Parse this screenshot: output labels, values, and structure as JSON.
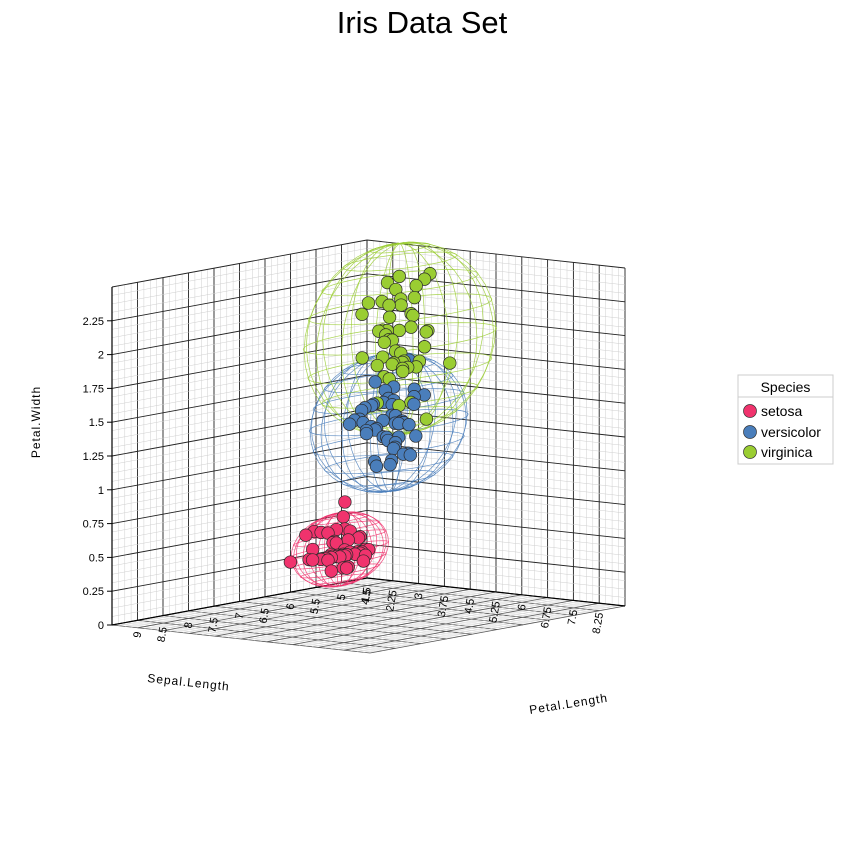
{
  "chart_data": {
    "type": "scatter",
    "title": "Iris Data Set",
    "xlabel": "Sepal.Length",
    "zlabel": "Petal.Length",
    "ylabel": "Petal.Width",
    "sepal_ticks": [
      "4.5",
      "5",
      "5.5",
      "6",
      "6.5",
      "7",
      "7.5",
      "8",
      "8.5",
      "9"
    ],
    "petal_length_ticks": [
      "1.5",
      "2.25",
      "3",
      "3.75",
      "4.5",
      "5.25",
      "6",
      "6.75",
      "7.5",
      "8.25"
    ],
    "petal_width_ticks": [
      "0",
      "0.25",
      "0.5",
      "0.75",
      "1",
      "1.25",
      "1.5",
      "1.75",
      "2",
      "2.25"
    ],
    "ylim": [
      0,
      2.5
    ],
    "grid": true,
    "legend": {
      "title": "Species",
      "position": "right"
    },
    "series": [
      {
        "name": "setosa",
        "color": "#f0336d",
        "sepal_length": [
          5.1,
          4.9,
          4.7,
          4.6,
          5.0,
          5.4,
          4.6,
          5.0,
          4.4,
          4.9,
          5.4,
          4.8,
          4.8,
          4.3,
          5.8,
          5.7,
          5.4,
          5.1,
          5.7,
          5.1,
          5.4,
          5.1,
          4.6,
          5.1,
          4.8,
          5.0,
          5.0,
          5.2,
          5.2,
          4.7,
          4.8,
          5.4,
          5.2,
          5.5,
          4.9,
          5.0,
          5.5,
          4.9,
          4.4,
          5.1,
          5.0,
          4.5,
          4.4,
          5.0,
          5.1,
          4.8,
          5.1,
          4.6,
          5.3,
          5.0
        ],
        "petal_length": [
          1.4,
          1.4,
          1.3,
          1.5,
          1.4,
          1.7,
          1.4,
          1.5,
          1.4,
          1.5,
          1.5,
          1.6,
          1.4,
          1.1,
          1.2,
          1.5,
          1.3,
          1.4,
          1.7,
          1.5,
          1.7,
          1.5,
          1.0,
          1.7,
          1.9,
          1.6,
          1.6,
          1.5,
          1.4,
          1.6,
          1.6,
          1.5,
          1.5,
          1.4,
          1.5,
          1.2,
          1.3,
          1.4,
          1.3,
          1.5,
          1.3,
          1.3,
          1.3,
          1.6,
          1.9,
          1.4,
          1.6,
          1.4,
          1.5,
          1.4
        ],
        "petal_width": [
          0.2,
          0.2,
          0.2,
          0.2,
          0.2,
          0.4,
          0.3,
          0.2,
          0.2,
          0.1,
          0.2,
          0.2,
          0.1,
          0.1,
          0.2,
          0.4,
          0.4,
          0.3,
          0.3,
          0.3,
          0.2,
          0.4,
          0.2,
          0.5,
          0.2,
          0.2,
          0.4,
          0.2,
          0.2,
          0.2,
          0.2,
          0.4,
          0.1,
          0.2,
          0.2,
          0.2,
          0.2,
          0.1,
          0.2,
          0.2,
          0.3,
          0.3,
          0.2,
          0.6,
          0.4,
          0.3,
          0.2,
          0.2,
          0.2,
          0.2
        ]
      },
      {
        "name": "versicolor",
        "color": "#4a7ebb",
        "sepal_length": [
          7.0,
          6.4,
          6.9,
          5.5,
          6.5,
          5.7,
          6.3,
          4.9,
          6.6,
          5.2,
          5.0,
          5.9,
          6.0,
          6.1,
          5.6,
          6.7,
          5.6,
          5.8,
          6.2,
          5.6,
          5.9,
          6.1,
          6.3,
          6.1,
          6.4,
          6.6,
          6.8,
          6.7,
          6.0,
          5.7,
          5.5,
          5.5,
          5.8,
          6.0,
          5.4,
          6.0,
          6.7,
          6.3,
          5.6,
          5.5,
          5.5,
          6.1,
          5.8,
          5.0,
          5.6,
          5.7,
          5.7,
          6.2,
          5.1,
          5.7
        ],
        "petal_length": [
          4.7,
          4.5,
          4.9,
          4.0,
          4.6,
          4.5,
          4.7,
          3.3,
          4.6,
          3.9,
          3.5,
          4.2,
          4.0,
          4.7,
          3.6,
          4.4,
          4.5,
          4.1,
          4.5,
          3.9,
          4.8,
          4.0,
          4.9,
          4.7,
          4.3,
          4.4,
          4.8,
          5.0,
          4.5,
          3.5,
          3.8,
          3.7,
          3.9,
          5.1,
          4.5,
          4.5,
          4.7,
          4.4,
          4.1,
          4.0,
          4.4,
          4.6,
          4.0,
          3.3,
          4.2,
          4.2,
          4.2,
          4.3,
          3.0,
          4.1
        ],
        "petal_width": [
          1.4,
          1.5,
          1.5,
          1.3,
          1.5,
          1.3,
          1.6,
          1.0,
          1.3,
          1.4,
          1.0,
          1.5,
          1.0,
          1.4,
          1.3,
          1.4,
          1.5,
          1.0,
          1.5,
          1.1,
          1.8,
          1.3,
          1.5,
          1.2,
          1.3,
          1.4,
          1.4,
          1.7,
          1.5,
          1.0,
          1.1,
          1.0,
          1.2,
          1.6,
          1.5,
          1.6,
          1.5,
          1.3,
          1.3,
          1.3,
          1.2,
          1.4,
          1.2,
          1.0,
          1.3,
          1.2,
          1.3,
          1.3,
          1.1,
          1.3
        ]
      },
      {
        "name": "virginica",
        "color": "#9acd32",
        "sepal_length": [
          6.3,
          5.8,
          7.1,
          6.3,
          6.5,
          7.6,
          4.9,
          7.3,
          6.7,
          7.2,
          6.5,
          6.4,
          6.8,
          5.7,
          5.8,
          6.4,
          6.5,
          7.7,
          7.7,
          6.0,
          6.9,
          5.6,
          7.7,
          6.3,
          6.7,
          7.2,
          6.2,
          6.1,
          6.4,
          7.2,
          7.4,
          7.9,
          6.4,
          6.3,
          6.1,
          7.7,
          6.3,
          6.4,
          6.0,
          6.9,
          6.7,
          6.9,
          5.8,
          6.8,
          6.7,
          6.7,
          6.3,
          6.5,
          6.2,
          5.9
        ],
        "petal_length": [
          6.0,
          5.1,
          5.9,
          5.6,
          5.8,
          6.6,
          4.5,
          6.3,
          5.8,
          6.1,
          5.1,
          5.3,
          5.5,
          5.0,
          5.1,
          5.3,
          5.5,
          6.7,
          6.9,
          5.0,
          5.7,
          4.9,
          6.7,
          4.9,
          5.7,
          6.0,
          4.8,
          4.9,
          5.6,
          5.8,
          6.1,
          6.4,
          5.6,
          5.1,
          5.6,
          6.1,
          5.6,
          5.5,
          4.8,
          5.4,
          5.6,
          5.1,
          5.1,
          5.9,
          5.7,
          5.2,
          5.0,
          5.2,
          5.4,
          5.1
        ],
        "petal_width": [
          2.5,
          1.9,
          2.1,
          1.8,
          2.2,
          2.1,
          1.7,
          1.8,
          1.8,
          2.5,
          2.0,
          1.9,
          2.1,
          2.0,
          2.4,
          2.3,
          1.8,
          2.2,
          2.3,
          1.5,
          2.3,
          2.0,
          2.0,
          1.8,
          2.1,
          1.8,
          1.8,
          1.8,
          2.1,
          1.6,
          1.9,
          2.0,
          2.2,
          1.5,
          1.4,
          2.3,
          2.4,
          1.8,
          1.8,
          2.1,
          2.4,
          2.3,
          1.9,
          2.3,
          2.5,
          2.3,
          1.9,
          2.0,
          2.3,
          1.8
        ]
      }
    ]
  }
}
